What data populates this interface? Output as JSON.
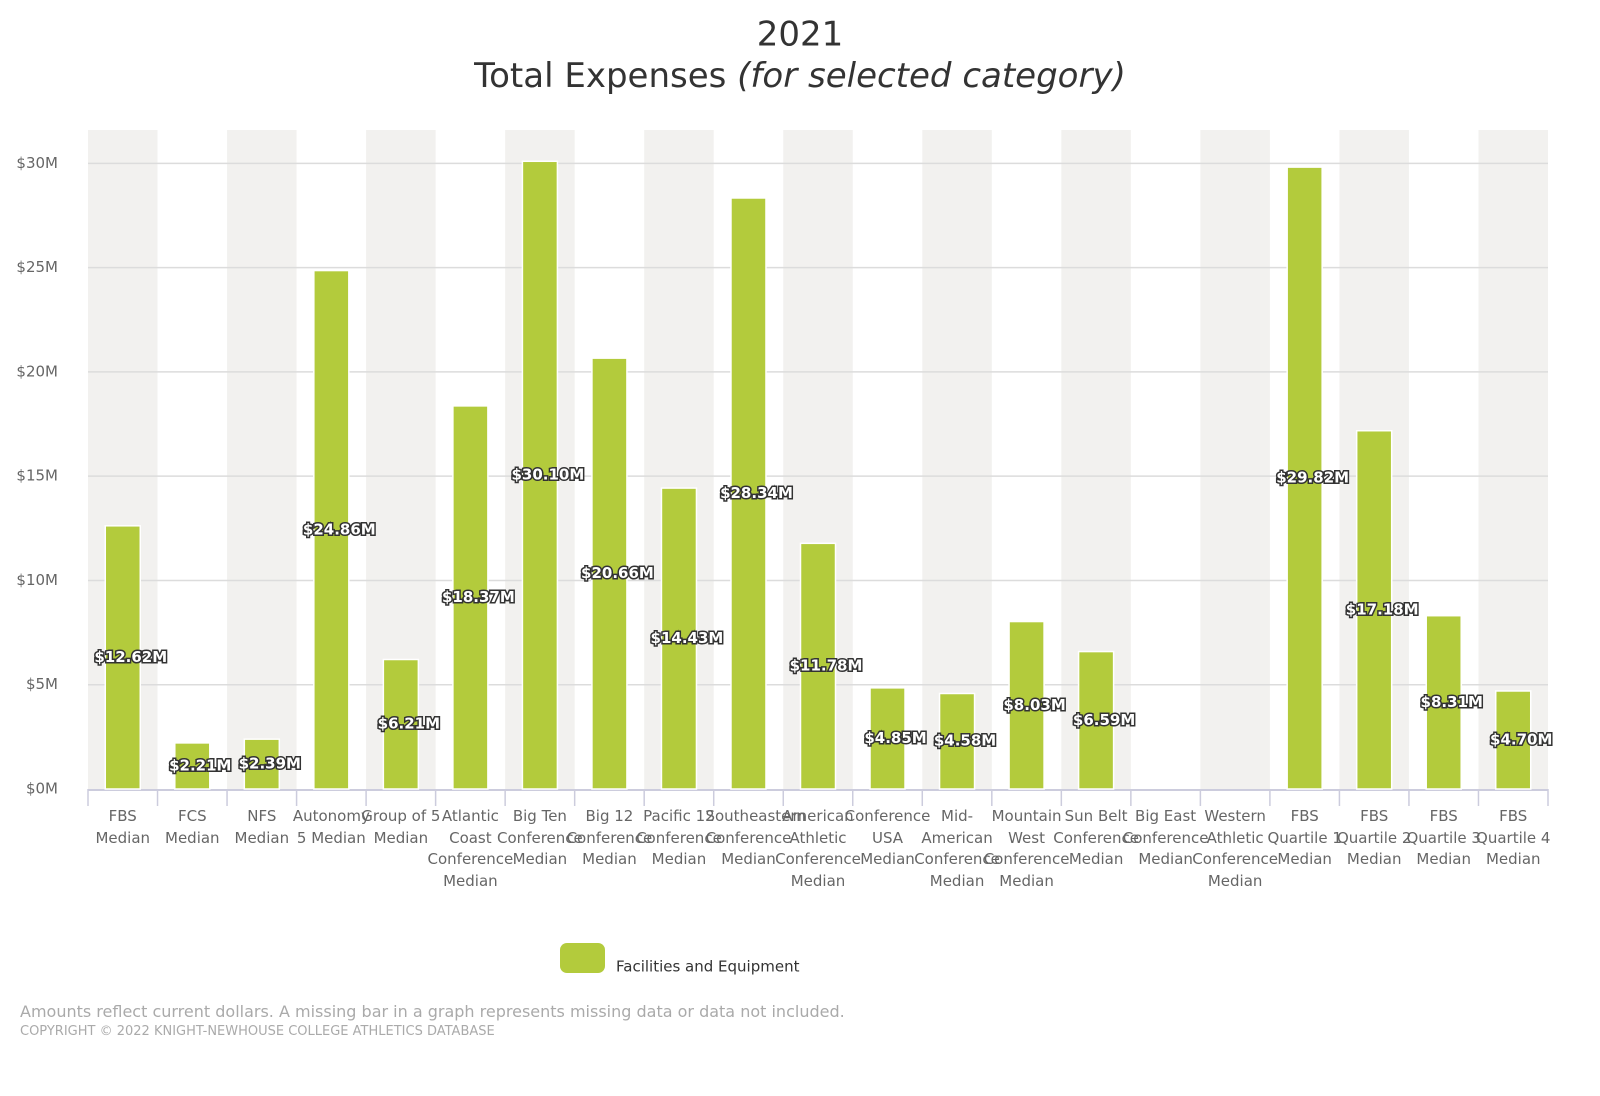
{
  "chart_data": {
    "type": "bar",
    "title": "2021",
    "subtitle": "Total Expenses",
    "subtitle_note": "(for selected category)",
    "categories": [
      "FBS Median",
      "FCS Median",
      "NFS Median",
      "Autonomy 5 Median",
      "Group of 5 Median",
      "Atlantic Coast Conference Median",
      "Big Ten Conference Median",
      "Big 12 Conference Median",
      "Pacific 12 Conference Median",
      "Southeastern Conference Median",
      "American Athletic Conference Median",
      "Conference USA Median",
      "Mid-American Conference Median",
      "Mountain West Conference Median",
      "Sun Belt Conference Median",
      "Big East Conference Median",
      "Western Athletic Conference Median",
      "FBS Quartile 1 Median",
      "FBS Quartile 2 Median",
      "FBS Quartile 3 Median",
      "FBS Quartile 4 Median"
    ],
    "series": [
      {
        "name": "Facilities and Equipment",
        "color": "#b3cb3c",
        "values": [
          12.62,
          2.21,
          2.39,
          24.86,
          6.21,
          18.37,
          30.1,
          20.66,
          14.43,
          28.34,
          11.78,
          4.85,
          4.58,
          8.03,
          6.59,
          null,
          null,
          29.82,
          17.18,
          8.31,
          4.7
        ],
        "value_labels": [
          "$12.62M",
          "$2.21M",
          "$2.39M",
          "$24.86M",
          "$6.21M",
          "$18.37M",
          "$30.10M",
          "$20.66M",
          "$14.43M",
          "$28.34M",
          "$11.78M",
          "$4.85M",
          "$4.58M",
          "$8.03M",
          "$6.59M",
          null,
          null,
          "$29.82M",
          "$17.18M",
          "$8.31M",
          "$4.70M"
        ]
      }
    ],
    "ylim": [
      0,
      31.6
    ],
    "yticks": [
      {
        "value": 0,
        "label": "$0M"
      },
      {
        "value": 5,
        "label": "$5M"
      },
      {
        "value": 10,
        "label": "$10M"
      },
      {
        "value": 15,
        "label": "$15M"
      },
      {
        "value": 20,
        "label": "$20M"
      },
      {
        "value": 25,
        "label": "$25M"
      },
      {
        "value": 30,
        "label": "$30M"
      }
    ],
    "grid": true,
    "note": "Amounts reflect current dollars. A missing bar in a graph represents missing data or data not included.",
    "copyright": "COPYRIGHT © 2022 KNIGHT-NEWHOUSE COLLEGE ATHLETICS DATABASE"
  }
}
